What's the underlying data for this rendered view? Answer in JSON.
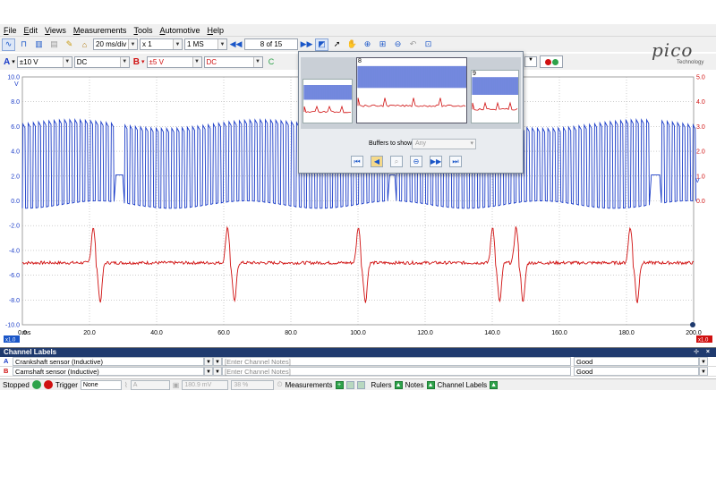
{
  "menu": [
    "File",
    "Edit",
    "Views",
    "Measurements",
    "Tools",
    "Automotive",
    "Help"
  ],
  "toolbar1": {
    "timebase": "20 ms/div",
    "zoom": "x 1",
    "samples": "1 MS",
    "buffer": "8 of 15"
  },
  "toolbar2": {
    "chanA_label": "A",
    "chanA_range": "±10 V",
    "chanA_coupling": "DC",
    "chanB_label": "B",
    "chanB_range": "±5 V",
    "chanB_coupling": "DC"
  },
  "logo": {
    "brand": "pico",
    "tag": "Technology"
  },
  "popup": {
    "buffers_label": "Buffers to show",
    "buffers_value": "Any",
    "thumbs": [
      "8",
      "9"
    ]
  },
  "colors": {
    "chanA": "#1a3cc8",
    "chanB": "#d01010",
    "header": "#1f3a6e"
  },
  "chart_data": {
    "type": "line",
    "xlabel": "ms",
    "xlim": [
      0,
      200
    ],
    "x_ticks": [
      "0.0",
      "20.0",
      "40.0",
      "60.0",
      "80.0",
      "100.0",
      "120.0",
      "140.0",
      "160.0",
      "180.0",
      "200.0"
    ],
    "yA_ticks": [
      "10.0",
      "8.0",
      "6.0",
      "4.0",
      "2.0",
      "0.0",
      "-2.0",
      "-4.0",
      "-6.0",
      "-8.0",
      "-10.0"
    ],
    "yA_unit": "V",
    "yA_lim": [
      -10,
      10
    ],
    "yB_ticks": [
      "5.0",
      "4.0",
      "3.0",
      "2.0",
      "1.0",
      "0.0"
    ],
    "yB_unit": "V",
    "yB_lim": [
      -5,
      5
    ],
    "series": [
      {
        "name": "Crankshaft sensor (Inductive)",
        "channel": "A",
        "high": 6.2,
        "low": -0.3,
        "gap_times_ms": [
          27,
          108,
          187
        ]
      },
      {
        "name": "Camshaft sensor (Inductive)",
        "channel": "B",
        "baseline": -5.0,
        "pulse_times_ms": [
          22,
          62,
          101,
          141,
          148,
          182
        ]
      }
    ],
    "axis_markers": {
      "left_bottom": "x1.0",
      "right_bottom": "x1.0"
    }
  },
  "labels_panel": {
    "title": "Channel Labels",
    "rows": [
      {
        "channel": "A",
        "name": "Crankshaft sensor (Inductive)",
        "notes": "[Enter Channel Notes]",
        "status": "Good"
      },
      {
        "channel": "B",
        "name": "Camshaft sensor (Inductive)",
        "notes": "[Enter Channel Notes]",
        "status": "Good"
      }
    ]
  },
  "status": {
    "stopped": "Stopped",
    "trigger": "Trigger",
    "trigger_mode": "None",
    "trigger_src": "A",
    "trigger_level": "180.9 mV",
    "trigger_pct": "38 %",
    "measurements": "Measurements",
    "rulers": "Rulers",
    "notes": "Notes",
    "channel_labels": "Channel Labels"
  }
}
